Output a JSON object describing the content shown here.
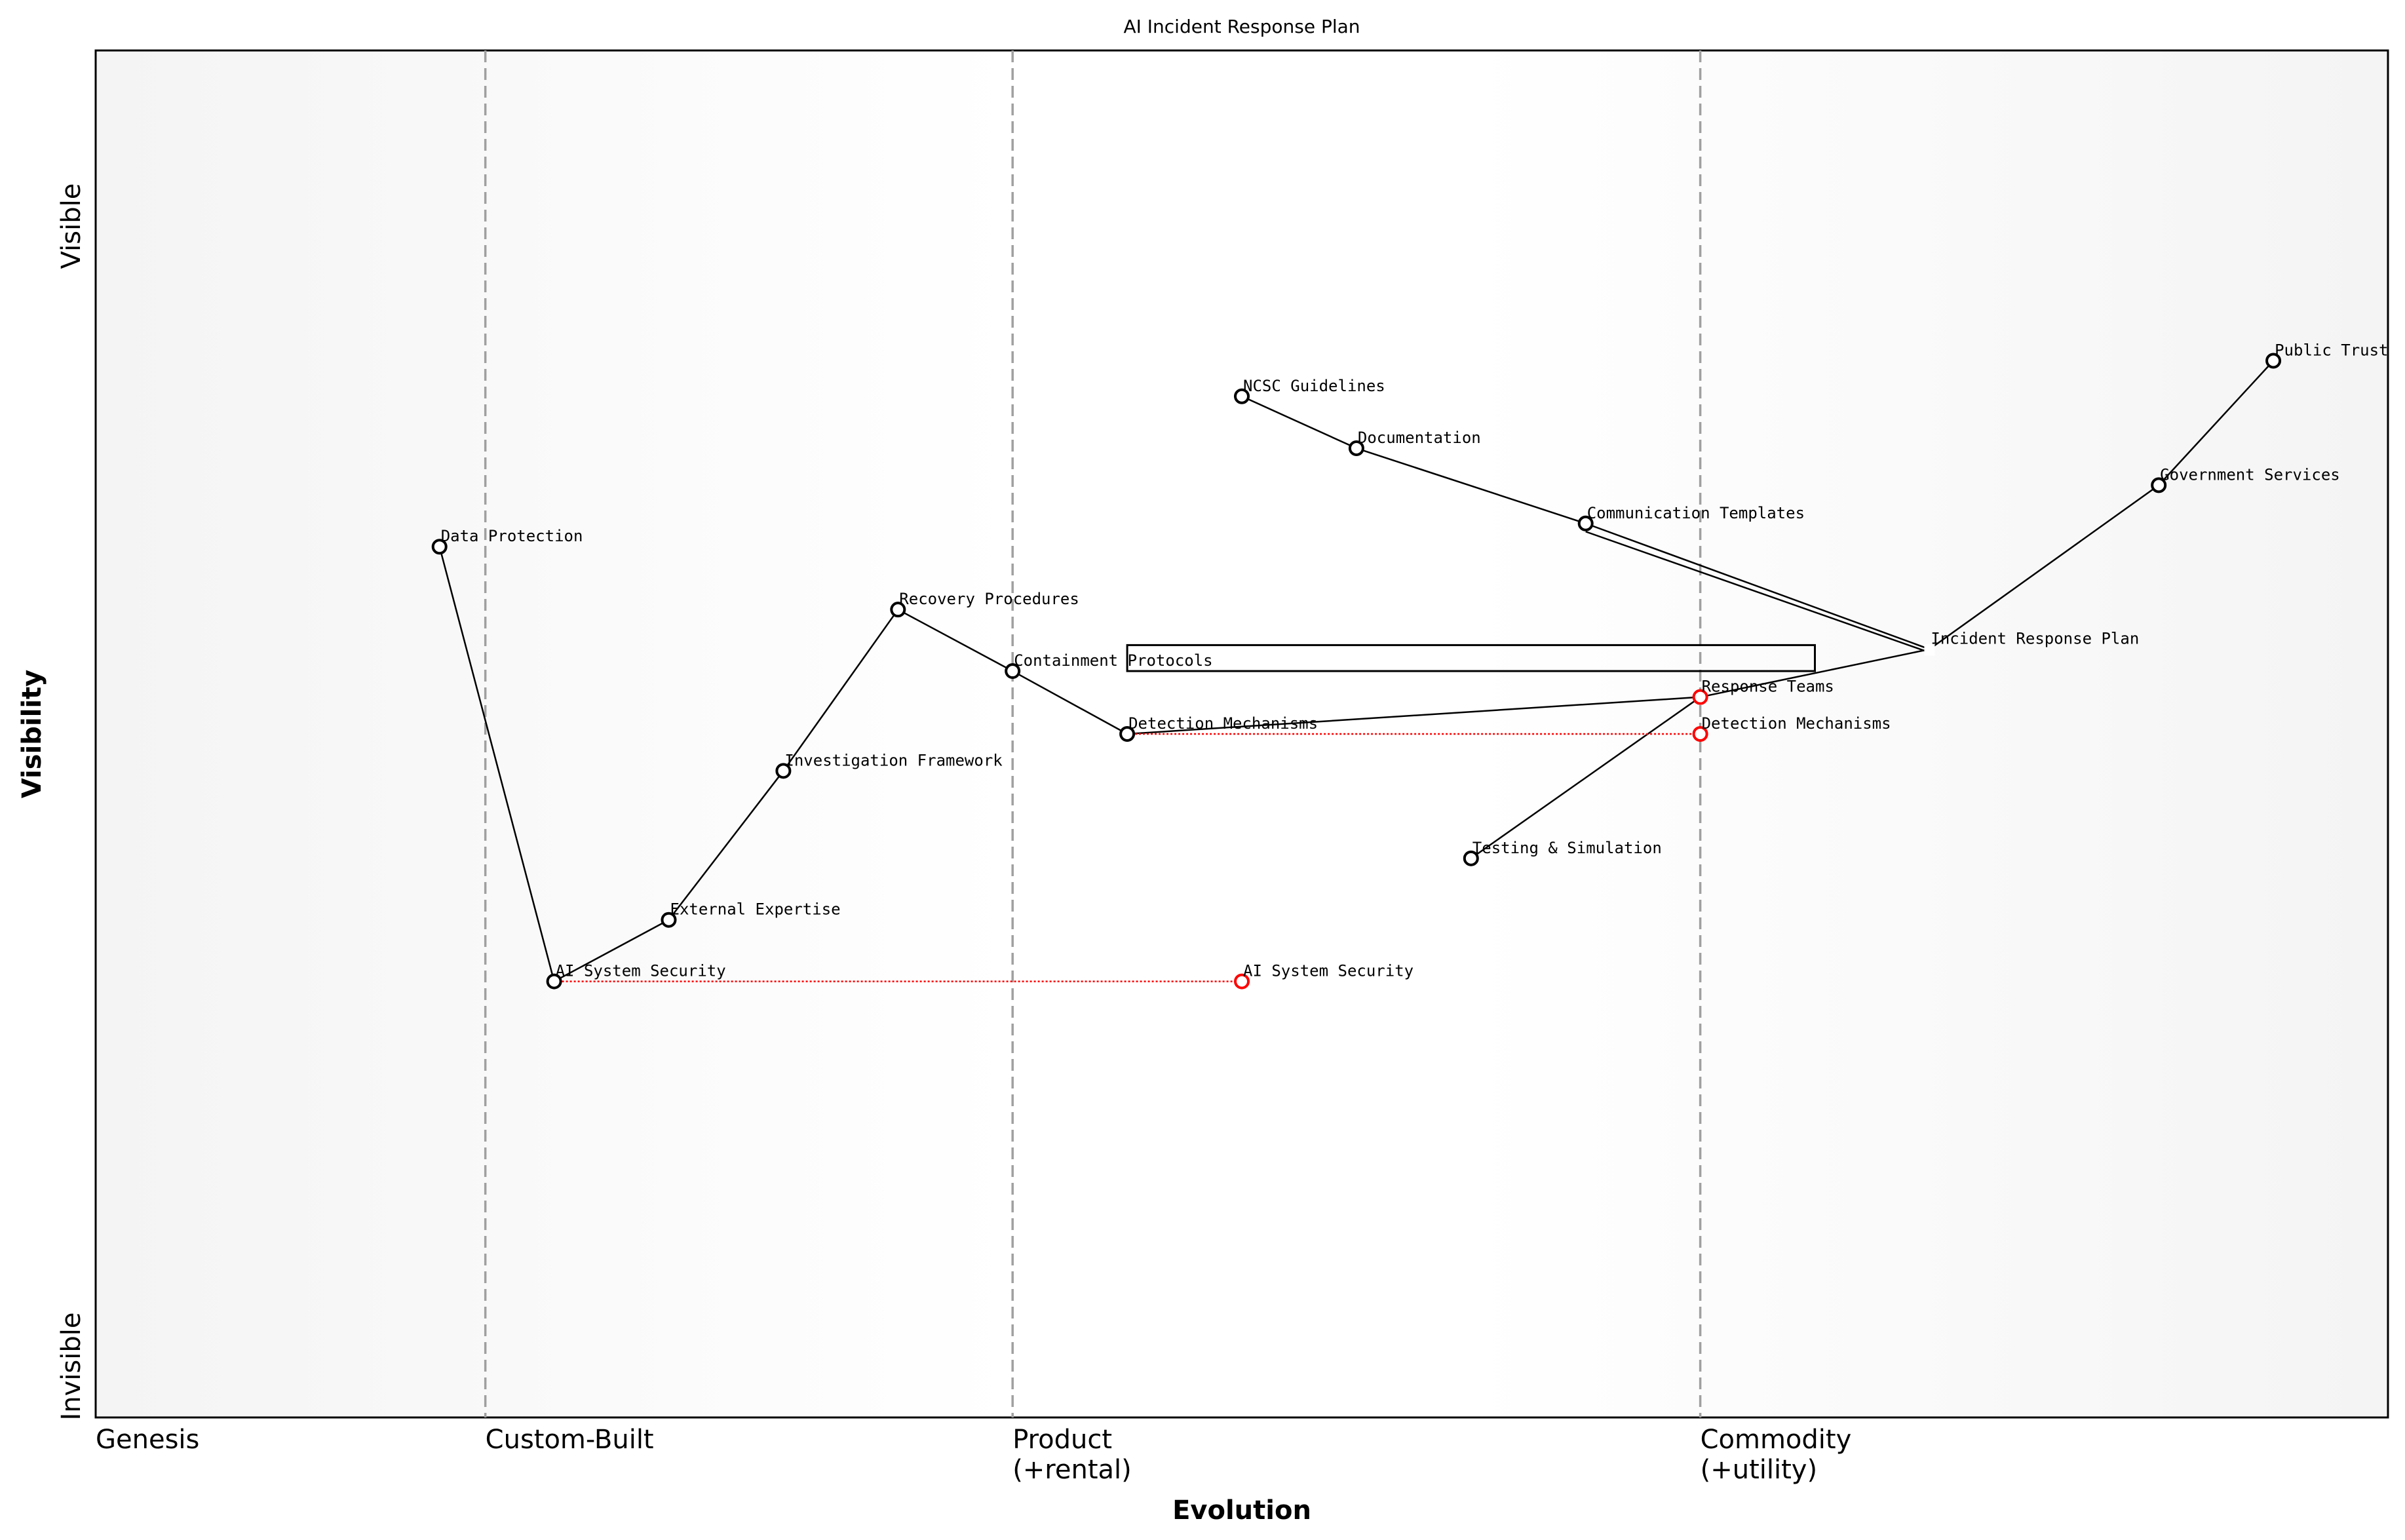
{
  "title": "AI Incident Response Plan",
  "x_axis_label": "Evolution",
  "y_axis_label": "Visibility",
  "y_top_label": "Visible",
  "y_bottom_label": "Invisible",
  "stages": [
    {
      "label": "Genesis",
      "position": 0.0,
      "line": false
    },
    {
      "label": "Custom-Built",
      "position": 0.17,
      "line": true
    },
    {
      "label": "Product",
      "label2": "(+rental)",
      "position": 0.4,
      "line": true
    },
    {
      "label": "Commodity",
      "label2": "(+utility)",
      "position": 0.7,
      "line": true
    }
  ],
  "components": [
    {
      "id": "public-trust",
      "name": "Public Trust",
      "evolution": 0.95,
      "visibility": 0.773
    },
    {
      "id": "government-services",
      "name": "Government Services",
      "evolution": 0.9,
      "visibility": 0.682
    },
    {
      "id": "incident-response-plan",
      "name": "Incident Response Plan",
      "evolution": 0.8,
      "visibility": 0.562,
      "marker": false
    },
    {
      "id": "ncsc-guidelines",
      "name": "NCSC Guidelines",
      "evolution": 0.5,
      "visibility": 0.747
    },
    {
      "id": "documentation",
      "name": "Documentation",
      "evolution": 0.55,
      "visibility": 0.709
    },
    {
      "id": "communication-templates",
      "name": "Communication Templates",
      "evolution": 0.65,
      "visibility": 0.654
    },
    {
      "id": "data-protection",
      "name": "Data Protection",
      "evolution": 0.15,
      "visibility": 0.637
    },
    {
      "id": "recovery-procedures",
      "name": "Recovery Procedures",
      "evolution": 0.35,
      "visibility": 0.591
    },
    {
      "id": "containment-protocols",
      "name": "Containment Protocols",
      "evolution": 0.4,
      "visibility": 0.546
    },
    {
      "id": "detection-mechanisms",
      "name": "Detection Mechanisms",
      "evolution": 0.45,
      "visibility": 0.5
    },
    {
      "id": "investigation-framework",
      "name": "Investigation Framework",
      "evolution": 0.3,
      "visibility": 0.473
    },
    {
      "id": "external-expertise",
      "name": "External Expertise",
      "evolution": 0.25,
      "visibility": 0.364
    },
    {
      "id": "ai-system-security",
      "name": "AI System Security",
      "evolution": 0.2,
      "visibility": 0.319
    },
    {
      "id": "testing-simulation",
      "name": "Testing & Simulation",
      "evolution": 0.6,
      "visibility": 0.409
    },
    {
      "id": "response-teams",
      "name": "Response Teams",
      "evolution": 0.7,
      "visibility": 0.527,
      "color": "#ff0000"
    },
    {
      "id": "detection-mechanisms-evolved",
      "name": "Detection Mechanisms",
      "evolution": 0.7,
      "visibility": 0.5,
      "color": "#ff0000"
    },
    {
      "id": "ai-system-security-evolved",
      "name": "AI System Security",
      "evolution": 0.5,
      "visibility": 0.319,
      "color": "#ff0000"
    }
  ],
  "links": [
    [
      "government-services",
      "public-trust"
    ],
    [
      "incident-response-plan",
      "government-services"
    ],
    [
      "incident-response-plan",
      "communication-templates"
    ],
    [
      "incident-response-plan",
      "communication-templates"
    ],
    [
      "communication-templates",
      "documentation"
    ],
    [
      "documentation",
      "ncsc-guidelines"
    ],
    [
      "incident-response-plan",
      "response-teams"
    ],
    [
      "response-teams",
      "testing-simulation"
    ],
    [
      "response-teams",
      "detection-mechanisms"
    ],
    [
      "detection-mechanisms",
      "containment-protocols"
    ],
    [
      "containment-protocols",
      "recovery-procedures"
    ],
    [
      "recovery-procedures",
      "investigation-framework"
    ],
    [
      "investigation-framework",
      "external-expertise"
    ],
    [
      "external-expertise",
      "ai-system-security"
    ],
    [
      "ai-system-security",
      "data-protection"
    ]
  ],
  "evolutions": [
    [
      "ai-system-security",
      "ai-system-security-evolved"
    ],
    [
      "detection-mechanisms",
      "detection-mechanisms-evolved"
    ]
  ],
  "annotation_box": {
    "evolution_from": 0.45,
    "evolution_to": 0.75,
    "visibility_from": 0.546,
    "visibility_to": 0.565
  },
  "colors": {
    "link": "#000000",
    "evolve": "#ff0000",
    "stage_line": "#a0a0a0",
    "background_edge": "#f5f5f5",
    "background_center": "#ffffff"
  }
}
